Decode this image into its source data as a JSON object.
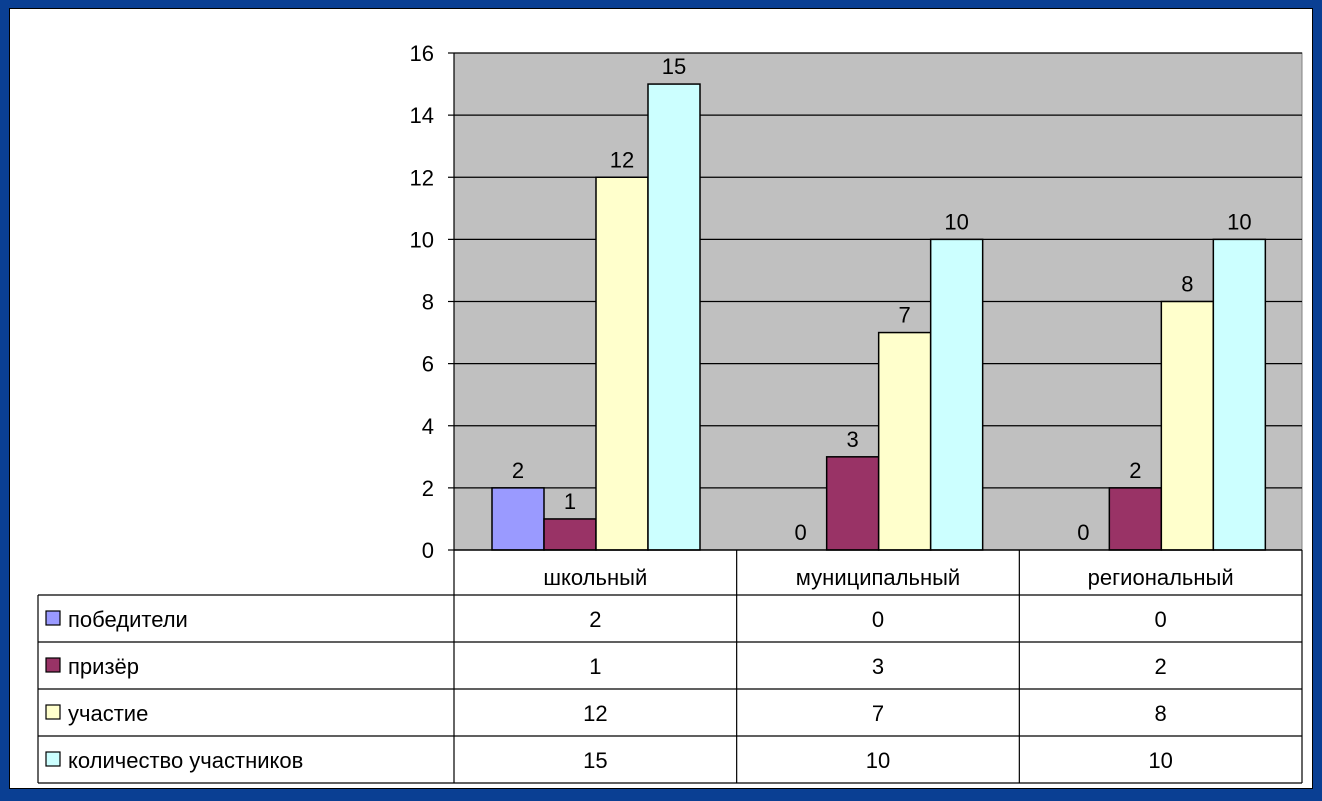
{
  "chart_data": {
    "type": "bar",
    "title": "",
    "xlabel": "",
    "ylabel": "",
    "ylim": [
      0,
      16
    ],
    "yticks": [
      0,
      2,
      4,
      6,
      8,
      10,
      12,
      14,
      16
    ],
    "grid": true,
    "legend": "bottom-left data table",
    "categories": [
      "школьный",
      "муниципальный",
      "региональный"
    ],
    "series": [
      {
        "name": "победители",
        "color": "#9a9aff",
        "values": [
          2,
          0,
          0
        ]
      },
      {
        "name": "призёр",
        "color": "#993366",
        "values": [
          1,
          3,
          2
        ]
      },
      {
        "name": "участие",
        "color": "#ffffcc",
        "values": [
          12,
          7,
          8
        ]
      },
      {
        "name": "количество участников",
        "color": "#ccffff",
        "values": [
          15,
          10,
          10
        ]
      }
    ],
    "plot_background": "#c0c0c0"
  }
}
